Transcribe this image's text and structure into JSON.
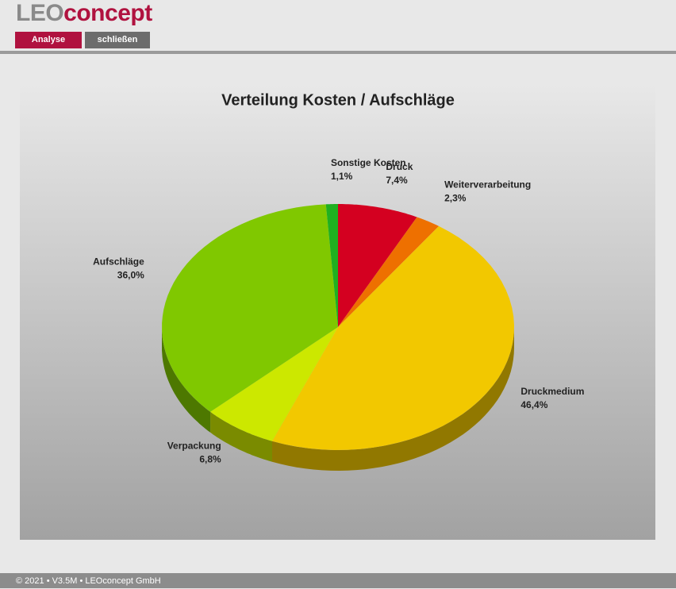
{
  "header": {
    "logo_left": "LEO",
    "logo_right": "concept"
  },
  "buttons": [
    "Analyse",
    "schließen"
  ],
  "chart_data": {
    "type": "pie",
    "title": "Verteilung Kosten / Aufschläge",
    "categories": [
      "Druck",
      "Weiterverarbeitung",
      "Druckmedium",
      "Verpackung",
      "Aufschläge",
      "Sonstige Kosten"
    ],
    "values": [
      7.4,
      2.3,
      46.4,
      6.8,
      36.0,
      1.1
    ],
    "value_labels": [
      "7,4%",
      "2,3%",
      "46,4%",
      "6,8%",
      "36,0%",
      "1,1%"
    ],
    "colors": [
      "#d40020",
      "#ee7000",
      "#f2c800",
      "#cce800",
      "#80c800",
      "#20b020"
    ]
  },
  "footer": "© 2021 • V3.5M • LEOconcept GmbH"
}
